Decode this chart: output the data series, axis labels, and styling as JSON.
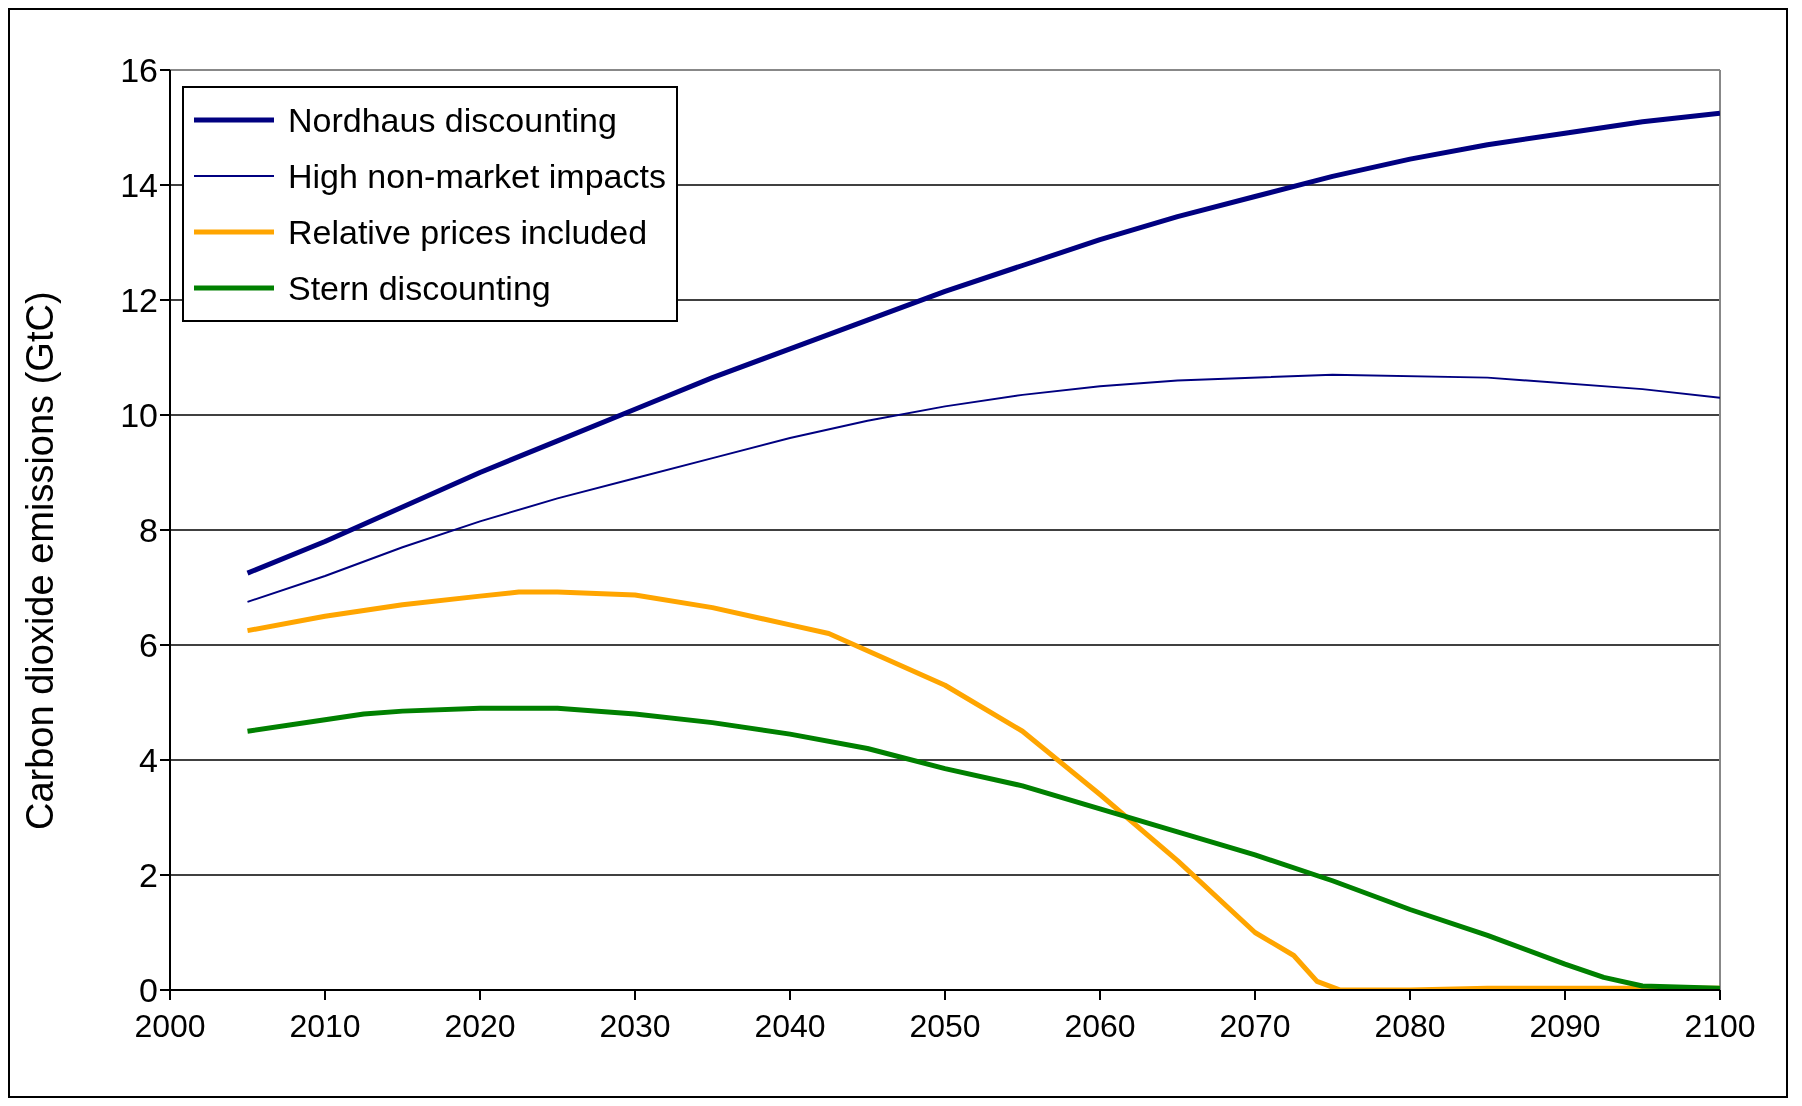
{
  "chart_data": {
    "type": "line",
    "ylabel": "Carbon dioxide emissions (GtC)",
    "xlim": [
      2000,
      2100
    ],
    "xticks": [
      2000,
      2010,
      2020,
      2030,
      2040,
      2050,
      2060,
      2070,
      2080,
      2090,
      2100
    ],
    "ylim": [
      0,
      16
    ],
    "yticks": [
      0,
      2,
      4,
      6,
      8,
      10,
      12,
      14,
      16
    ],
    "grid": "y",
    "legend": "top left",
    "marker": "none",
    "line_style": "solid",
    "series": [
      {
        "name": "Nordhaus discounting",
        "color": "#000080",
        "x": [
          2005,
          2010,
          2015,
          2020,
          2025,
          2030,
          2035,
          2040,
          2045,
          2050,
          2055,
          2060,
          2065,
          2070,
          2075,
          2080,
          2085,
          2090,
          2095,
          2100
        ],
        "values": [
          7.25,
          7.8,
          8.4,
          9.0,
          9.55,
          10.1,
          10.65,
          11.15,
          11.65,
          12.15,
          12.6,
          13.05,
          13.45,
          13.8,
          14.15,
          14.45,
          14.7,
          14.9,
          15.1,
          15.25
        ]
      },
      {
        "name": "High non-market impacts",
        "color": "#000080",
        "x": [
          2005,
          2010,
          2015,
          2020,
          2025,
          2030,
          2035,
          2040,
          2045,
          2050,
          2055,
          2060,
          2065,
          2075,
          2085,
          2095,
          2100
        ],
        "values": [
          6.75,
          7.2,
          7.7,
          8.15,
          8.55,
          8.9,
          9.25,
          9.6,
          9.9,
          10.15,
          10.35,
          10.5,
          10.6,
          10.7,
          10.65,
          10.45,
          10.3
        ]
      },
      {
        "name": "Relative prices included",
        "color": "#ffa500",
        "x": [
          2005,
          2010,
          2015,
          2020,
          2022.5,
          2025,
          2030,
          2035,
          2040,
          2042.5,
          2045,
          2050,
          2055,
          2060,
          2065,
          2070,
          2072.5,
          2074,
          2075.5,
          2080,
          2085,
          2095,
          2100
        ],
        "values": [
          6.25,
          6.5,
          6.7,
          6.85,
          6.92,
          6.92,
          6.87,
          6.65,
          6.35,
          6.2,
          5.9,
          5.3,
          4.5,
          3.4,
          2.25,
          1.0,
          0.6,
          0.15,
          0,
          0,
          0.03,
          0.03,
          0.03
        ]
      },
      {
        "name": "Stern discounting",
        "color": "#008000",
        "x": [
          2005,
          2010,
          2012.5,
          2015,
          2020,
          2025,
          2030,
          2035,
          2040,
          2045,
          2050,
          2055,
          2060,
          2065,
          2070,
          2075,
          2080,
          2085,
          2090,
          2092.5,
          2095,
          2100
        ],
        "values": [
          4.5,
          4.7,
          4.8,
          4.85,
          4.9,
          4.9,
          4.8,
          4.65,
          4.45,
          4.2,
          3.85,
          3.55,
          3.15,
          2.75,
          2.35,
          1.9,
          1.4,
          0.95,
          0.45,
          0.22,
          0.07,
          0.03
        ]
      }
    ]
  }
}
